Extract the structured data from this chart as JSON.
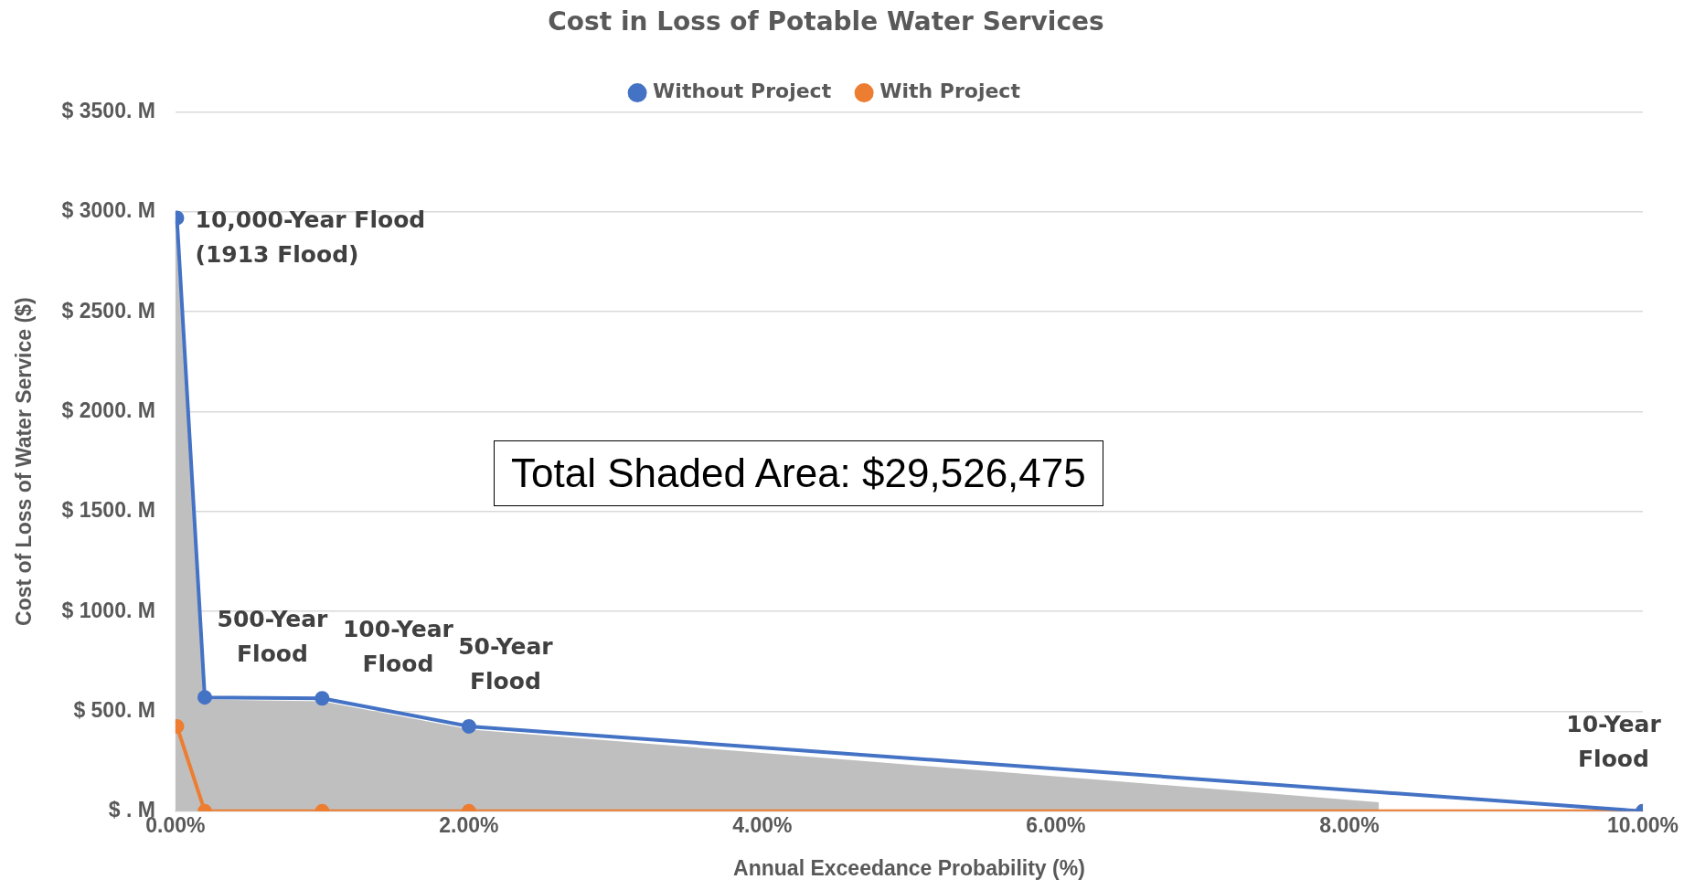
{
  "chart_data": {
    "type": "line",
    "title": "Cost in Loss of Potable Water Services",
    "xlabel": "Annual Exceedance Probability (%)",
    "ylabel": "Cost of Loss of Water Service ($)",
    "xlim": [
      0,
      10
    ],
    "xticks": [
      {
        "value": 0,
        "label": "0.00%"
      },
      {
        "value": 2,
        "label": "2.00%"
      },
      {
        "value": 4,
        "label": "4.00%"
      },
      {
        "value": 6,
        "label": "6.00%"
      },
      {
        "value": 8,
        "label": "8.00%"
      },
      {
        "value": 10,
        "label": "10.00%"
      }
    ],
    "ylim": [
      0,
      3500
    ],
    "yticks": [
      {
        "value": 0,
        "label": "$ . M"
      },
      {
        "value": 500,
        "label": "$ 500. M"
      },
      {
        "value": 1000,
        "label": "$ 1000. M"
      },
      {
        "value": 1500,
        "label": "$ 1500. M"
      },
      {
        "value": 2000,
        "label": "$ 2000. M"
      },
      {
        "value": 2500,
        "label": "$ 2500. M"
      },
      {
        "value": 3000,
        "label": "$ 3000. M"
      },
      {
        "value": 3500,
        "label": "$ 3500. M"
      }
    ],
    "series": [
      {
        "type": "area",
        "color": "#bfbfbf",
        "marker": "none",
        "x": [
          0,
          0.2,
          1,
          2,
          8.2
        ],
        "values": [
          2950,
          560,
          550,
          410,
          45
        ]
      },
      {
        "name": "Without Project",
        "color": "#4472c4",
        "x": [
          0.01,
          0.2,
          1,
          2,
          10
        ],
        "values": [
          2970,
          570,
          565,
          425,
          0
        ]
      },
      {
        "name": "With Project",
        "color": "#ed7d31",
        "x": [
          0.01,
          0.2,
          1,
          2,
          10
        ],
        "values": [
          425,
          0,
          0,
          0,
          0
        ]
      }
    ],
    "annotations": [
      {
        "text": "10,000-Year Flood\n(1913 Flood)",
        "x": 0.01,
        "y": 2970
      },
      {
        "text": "500-Year\nFlood",
        "x": 0.2,
        "y": 570
      },
      {
        "text": "100-Year\nFlood",
        "x": 1,
        "y": 565
      },
      {
        "text": "50-Year\nFlood",
        "x": 2,
        "y": 425
      },
      {
        "text": "10-Year\nFlood",
        "x": 10,
        "y": 0
      },
      "Total Shaded Area: $29,526,475"
    ],
    "grid": "y",
    "legend": "top",
    "marker": "circle",
    "line_style": "solid"
  }
}
